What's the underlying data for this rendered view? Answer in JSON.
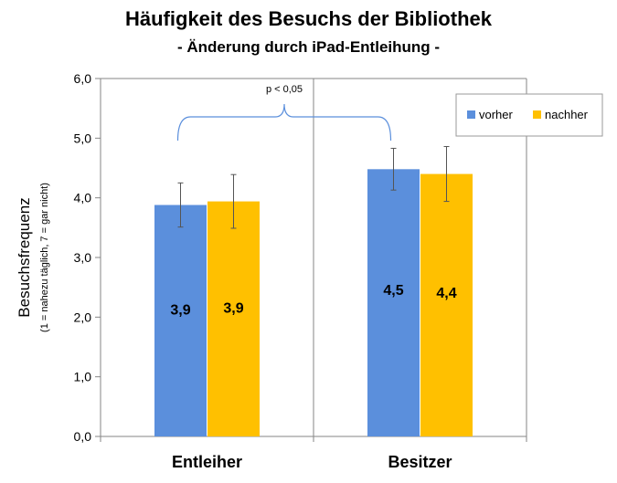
{
  "chart_data": {
    "type": "bar",
    "title": "Häufigkeit des Besuchs der Bibliothek",
    "subtitle": "- Änderung durch iPad-Entleihung -",
    "ylabel": "Besuchsfrequenz",
    "ylabel_sub": "(1 = nahezu täglich, 7 = gar nicht)",
    "xlabel": "",
    "ylim": [
      0,
      6
    ],
    "yticks": [
      "0,0",
      "1,0",
      "2,0",
      "3,0",
      "4,0",
      "5,0",
      "6,0"
    ],
    "grid": false,
    "legend_position": "top-right",
    "categories": [
      "Entleiher",
      "Besitzer"
    ],
    "series": [
      {
        "name": "vorher",
        "color": "#5B8FDC",
        "values": [
          3.88,
          4.48
        ],
        "labels": [
          "3,9",
          "4,5"
        ],
        "error": [
          0.37,
          0.35
        ]
      },
      {
        "name": "nachher",
        "color": "#FFC000",
        "values": [
          3.94,
          4.4
        ],
        "labels": [
          "3,9",
          "4,4"
        ],
        "error": [
          0.45,
          0.46
        ]
      }
    ],
    "annotation": "p < 0,05"
  }
}
